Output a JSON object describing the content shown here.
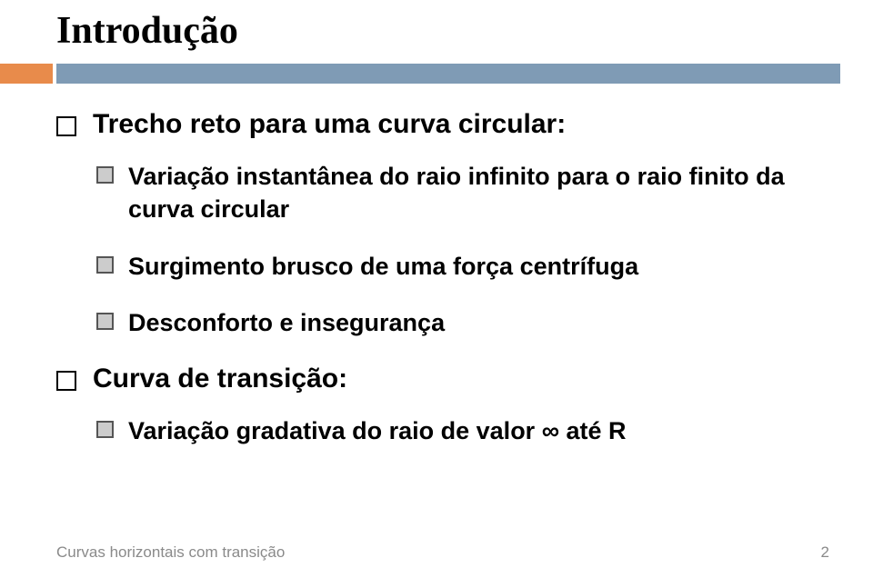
{
  "title": "Introdução",
  "colors": {
    "accent": "#e88b4b",
    "divider": "#7f9bb5",
    "background": "#ffffff",
    "l1_bullet_border": "#000000",
    "l2_bullet_border": "#555555",
    "l2_bullet_fill": "#cccccc",
    "footer_text": "#8a8a8a"
  },
  "typography": {
    "title_font": "Times New Roman",
    "body_font": "Arial",
    "title_size_pt": 32,
    "l1_size_pt": 22,
    "l2_size_pt": 20,
    "footer_size_pt": 13
  },
  "bullets": [
    {
      "level": 1,
      "text": "Trecho reto para uma curva circular:",
      "children": [
        {
          "text": "Variação instantânea do raio infinito para o raio finito da curva circular"
        },
        {
          "text": "Surgimento brusco de uma força centrífuga"
        },
        {
          "text": "Desconforto e insegurança"
        }
      ]
    },
    {
      "level": 1,
      "text": "Curva de transição:",
      "children": [
        {
          "text": "Variação gradativa do raio de valor ∞ até R"
        }
      ]
    }
  ],
  "footer": {
    "left": "Curvas horizontais com transição",
    "page_number": "2"
  }
}
